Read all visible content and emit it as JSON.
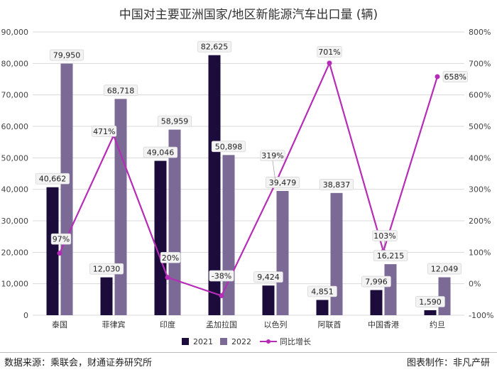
{
  "chart_data": {
    "type": "bar",
    "title": "中国对主要亚洲国家/地区新能源汽车出口量 (辆)",
    "categories": [
      "泰国",
      "菲律宾",
      "印度",
      "孟加拉国",
      "以色列",
      "阿联酋",
      "中国香港",
      "约旦"
    ],
    "series": [
      {
        "name": "2021",
        "type": "bar",
        "axis": "left",
        "color": "#1c0c3c",
        "values": [
          40662,
          12030,
          49046,
          82625,
          9424,
          4851,
          7996,
          1590
        ],
        "labels": [
          "40,662",
          "12,030",
          "49,046",
          "82,625",
          "9,424",
          "4,851",
          "7,996",
          "1,590"
        ]
      },
      {
        "name": "2022",
        "type": "bar",
        "axis": "right-of-pair",
        "color": "#7b6a96",
        "values": [
          79950,
          68718,
          58959,
          50898,
          39479,
          38837,
          16215,
          12049
        ],
        "labels": [
          "79,950",
          "68,718",
          "58,959",
          "50,898",
          "39,479",
          "38,837",
          "16,215",
          "12,049"
        ]
      },
      {
        "name": "同比增长",
        "type": "line",
        "axis": "right",
        "color": "#b62cb6",
        "values": [
          97,
          471,
          20,
          -38,
          319,
          701,
          103,
          658
        ],
        "labels": [
          "97%",
          "471%",
          "20%",
          "-38%",
          "319%",
          "701%",
          "103%",
          "658%"
        ]
      }
    ],
    "y_left": {
      "min": 0,
      "max": 90000,
      "step": 10000,
      "ticks": [
        "0",
        "10,000",
        "20,000",
        "30,000",
        "40,000",
        "50,000",
        "60,000",
        "70,000",
        "80,000",
        "90,000"
      ]
    },
    "y_right": {
      "min": -100,
      "max": 800,
      "step": 100,
      "ticks": [
        "-100%",
        "0%",
        "100%",
        "200%",
        "300%",
        "400%",
        "500%",
        "600%",
        "700%",
        "800%"
      ]
    },
    "legend": {
      "position": "bottom",
      "items": [
        "2021",
        "2022",
        "同比增长"
      ]
    },
    "grid": true
  },
  "footer": {
    "source": "数据来源：乘联会，财通证券研究所",
    "credit": "图表制作：非凡产研"
  }
}
